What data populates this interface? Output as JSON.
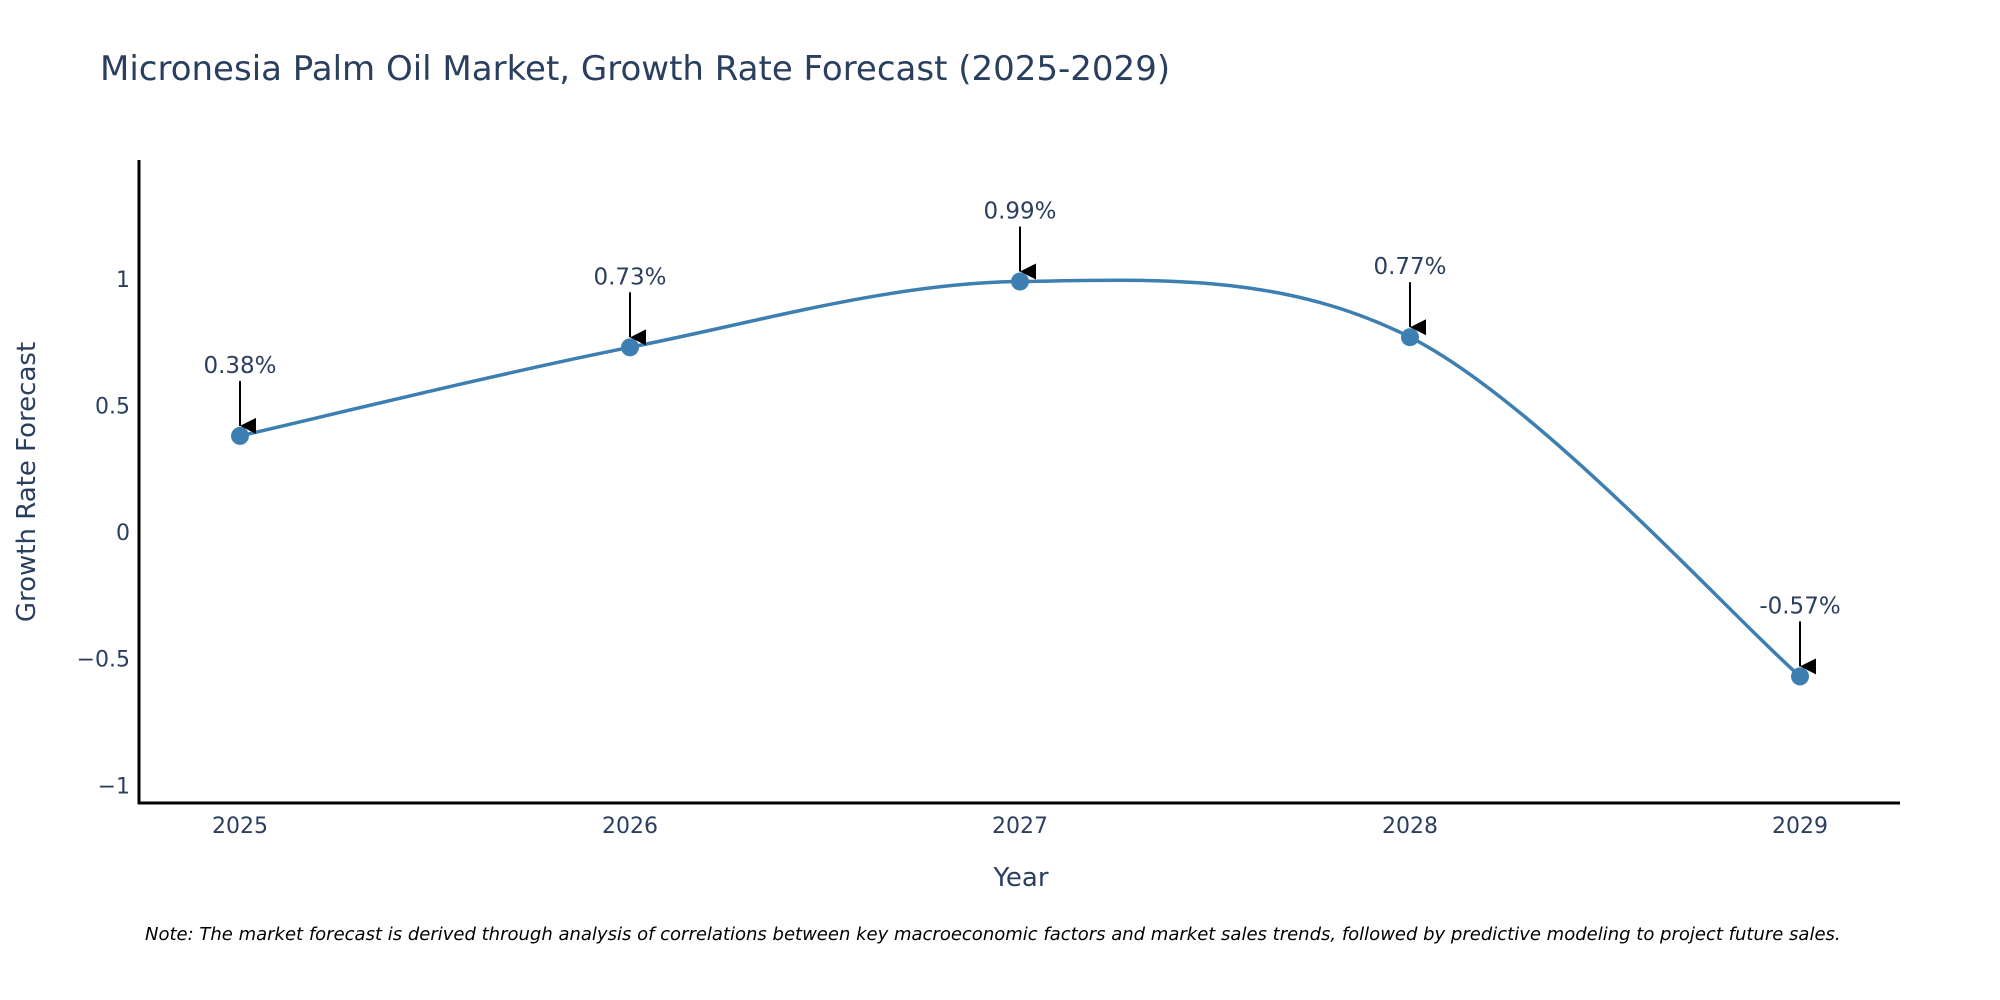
{
  "chart_data": {
    "type": "line",
    "title": "Micronesia Palm Oil Market, Growth Rate Forecast (2025-2029)",
    "xlabel": "Year",
    "ylabel": "Growth Rate Forecast",
    "x": [
      "2025",
      "2026",
      "2027",
      "2028",
      "2029"
    ],
    "series": [
      {
        "name": "Growth Rate Forecast",
        "values": [
          0.38,
          0.73,
          0.99,
          0.77,
          -0.57
        ],
        "labels": [
          "0.38%",
          "0.73%",
          "0.99%",
          "0.77%",
          "-0.57%"
        ],
        "color": "#3d7fb0",
        "line_shape": "spline"
      }
    ],
    "ylim": [
      -1.07,
      1.47
    ],
    "yticks": [
      -1,
      -0.5,
      0,
      0.5,
      1
    ],
    "ytick_labels": [
      "−1",
      "−0.5",
      "0",
      "0.5",
      "1"
    ],
    "grid": false,
    "note": "Note: The market forecast is derived through analysis of correlations between key macroeconomic factors and market sales trends, followed by predictive modeling to project future sales."
  },
  "colors": {
    "text": "#2a3f5f",
    "axis": "#000000",
    "line": "#3d7fb0",
    "arrow": "#000000"
  }
}
